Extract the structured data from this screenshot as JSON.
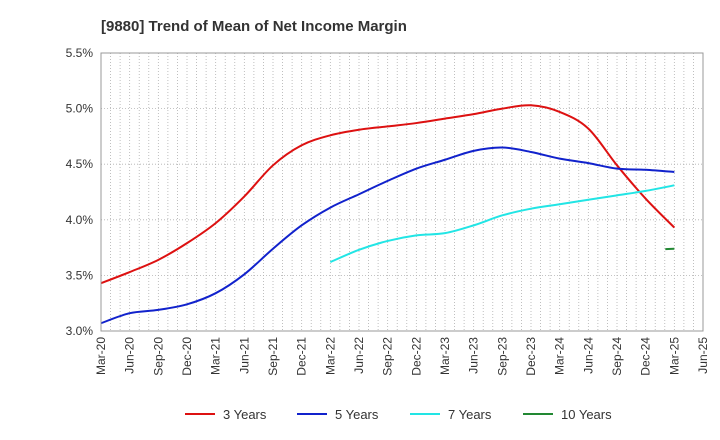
{
  "chart_data": {
    "type": "line",
    "title": "[9880]  Trend of Mean of Net Income Margin",
    "xlabel": "",
    "ylabel": "",
    "ylim": [
      3.0,
      5.5
    ],
    "yticks": [
      3.0,
      3.5,
      4.0,
      4.5,
      5.0,
      5.5
    ],
    "ytick_labels": [
      "3.0%",
      "3.5%",
      "4.0%",
      "4.5%",
      "5.0%",
      "5.5%"
    ],
    "x_tick_labels": [
      "Mar-20",
      "Jun-20",
      "Sep-20",
      "Dec-20",
      "Mar-21",
      "Jun-21",
      "Sep-21",
      "Dec-21",
      "Mar-22",
      "Jun-22",
      "Sep-22",
      "Dec-22",
      "Mar-23",
      "Jun-23",
      "Sep-23",
      "Dec-23",
      "Mar-24",
      "Jun-24",
      "Sep-24",
      "Dec-24",
      "Mar-25",
      "Jun-25"
    ],
    "grid": true,
    "legend_position": "bottom",
    "series": [
      {
        "name": "3 Years",
        "color": "#dd1111",
        "points": [
          [
            "Mar-20",
            3.43
          ],
          [
            "Jun-20",
            3.53
          ],
          [
            "Sep-20",
            3.64
          ],
          [
            "Dec-20",
            3.79
          ],
          [
            "Mar-21",
            3.97
          ],
          [
            "Jun-21",
            4.21
          ],
          [
            "Sep-21",
            4.49
          ],
          [
            "Dec-21",
            4.67
          ],
          [
            "Mar-22",
            4.76
          ],
          [
            "Jun-22",
            4.81
          ],
          [
            "Sep-22",
            4.84
          ],
          [
            "Dec-22",
            4.87
          ],
          [
            "Mar-23",
            4.91
          ],
          [
            "Jun-23",
            4.95
          ],
          [
            "Sep-23",
            5.0
          ],
          [
            "Dec-23",
            5.03
          ],
          [
            "Mar-24",
            4.97
          ],
          [
            "Jun-24",
            4.82
          ],
          [
            "Sep-24",
            4.49
          ],
          [
            "Dec-24",
            4.19
          ],
          [
            "Mar-25",
            3.93
          ]
        ]
      },
      {
        "name": "5 Years",
        "color": "#1122cc",
        "points": [
          [
            "Mar-20",
            3.07
          ],
          [
            "Jun-20",
            3.16
          ],
          [
            "Sep-20",
            3.19
          ],
          [
            "Dec-20",
            3.24
          ],
          [
            "Mar-21",
            3.34
          ],
          [
            "Jun-21",
            3.51
          ],
          [
            "Sep-21",
            3.74
          ],
          [
            "Dec-21",
            3.95
          ],
          [
            "Mar-22",
            4.11
          ],
          [
            "Jun-22",
            4.23
          ],
          [
            "Sep-22",
            4.35
          ],
          [
            "Dec-22",
            4.46
          ],
          [
            "Mar-23",
            4.54
          ],
          [
            "Jun-23",
            4.62
          ],
          [
            "Sep-23",
            4.65
          ],
          [
            "Dec-23",
            4.61
          ],
          [
            "Mar-24",
            4.55
          ],
          [
            "Jun-24",
            4.51
          ],
          [
            "Sep-24",
            4.46
          ],
          [
            "Dec-24",
            4.45
          ],
          [
            "Mar-25",
            4.43
          ]
        ]
      },
      {
        "name": "7 Years",
        "color": "#22e5e5",
        "points": [
          [
            "Mar-22",
            3.62
          ],
          [
            "Jun-22",
            3.73
          ],
          [
            "Sep-22",
            3.81
          ],
          [
            "Dec-22",
            3.86
          ],
          [
            "Mar-23",
            3.88
          ],
          [
            "Jun-23",
            3.95
          ],
          [
            "Sep-23",
            4.04
          ],
          [
            "Dec-23",
            4.1
          ],
          [
            "Mar-24",
            4.14
          ],
          [
            "Jun-24",
            4.18
          ],
          [
            "Sep-24",
            4.22
          ],
          [
            "Dec-24",
            4.26
          ],
          [
            "Mar-25",
            4.31
          ]
        ]
      },
      {
        "name": "10 Years",
        "color": "#228833",
        "points": [
          [
            "Mar-25",
            3.74
          ]
        ]
      }
    ]
  }
}
